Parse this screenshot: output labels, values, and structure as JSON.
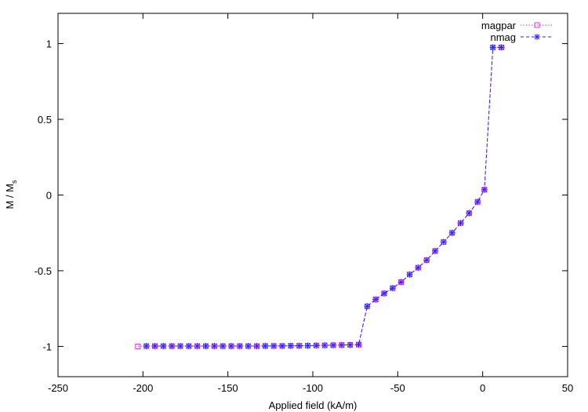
{
  "chart_data": {
    "type": "line",
    "xlabel": "Applied field (kA/m)",
    "ylabel": "M / M",
    "ylabel_sub": "s",
    "xlim": [
      -250,
      50
    ],
    "ylim": [
      -1.2,
      1.2
    ],
    "xticks": [
      -250,
      -200,
      -150,
      -100,
      -50,
      0,
      50
    ],
    "yticks": [
      -1,
      -0.5,
      0,
      0.5,
      1
    ],
    "xtick_labels": [
      "-250",
      "-200",
      "-150",
      "-100",
      "-50",
      "0",
      "50"
    ],
    "ytick_labels": [
      "-1",
      "-0.5",
      "0",
      "0.5",
      "1"
    ],
    "legend_position": "top-right",
    "series": [
      {
        "name": "magpar",
        "color": "#e030e0",
        "marker": "square",
        "line": "dotted",
        "x": [
          -203,
          -198,
          -193,
          -188,
          -183,
          -178,
          -173,
          -168,
          -163,
          -158,
          -153,
          -148,
          -143,
          -138,
          -133,
          -128,
          -123,
          -118,
          -113,
          -108,
          -103,
          -98,
          -93,
          -88,
          -83,
          -78,
          -73,
          -68,
          -63,
          -58,
          -53,
          -48,
          -43,
          -38,
          -33,
          -28,
          -23,
          -18,
          -13,
          -8,
          -3,
          1,
          6,
          11
        ],
        "y": [
          -1,
          -0.998,
          -0.998,
          -0.998,
          -0.998,
          -0.998,
          -0.998,
          -0.998,
          -0.998,
          -0.998,
          -0.998,
          -0.998,
          -0.998,
          -0.998,
          -0.998,
          -0.997,
          -0.997,
          -0.997,
          -0.996,
          -0.996,
          -0.995,
          -0.994,
          -0.993,
          -0.992,
          -0.991,
          -0.99,
          -0.988,
          -0.735,
          -0.69,
          -0.65,
          -0.615,
          -0.575,
          -0.525,
          -0.48,
          -0.43,
          -0.37,
          -0.31,
          -0.25,
          -0.185,
          -0.12,
          -0.045,
          0.035,
          0.975,
          0.975
        ]
      },
      {
        "name": "nmag",
        "color": "#2020ff",
        "marker": "star",
        "line": "dashed",
        "x": [
          -198,
          -193,
          -188,
          -183,
          -178,
          -173,
          -168,
          -163,
          -158,
          -153,
          -148,
          -143,
          -138,
          -133,
          -128,
          -123,
          -118,
          -113,
          -108,
          -103,
          -98,
          -93,
          -88,
          -83,
          -78,
          -73,
          -68,
          -63,
          -58,
          -53,
          -48,
          -43,
          -38,
          -33,
          -28,
          -23,
          -18,
          -13,
          -8,
          -3,
          1,
          6,
          11
        ],
        "y": [
          -0.998,
          -0.998,
          -0.998,
          -0.998,
          -0.998,
          -0.998,
          -0.998,
          -0.998,
          -0.998,
          -0.998,
          -0.998,
          -0.998,
          -0.998,
          -0.998,
          -0.997,
          -0.997,
          -0.997,
          -0.996,
          -0.996,
          -0.995,
          -0.994,
          -0.993,
          -0.992,
          -0.991,
          -0.99,
          -0.988,
          -0.735,
          -0.69,
          -0.65,
          -0.615,
          -0.575,
          -0.525,
          -0.48,
          -0.43,
          -0.37,
          -0.31,
          -0.25,
          -0.185,
          -0.12,
          -0.045,
          0.035,
          0.975,
          0.975
        ]
      }
    ]
  }
}
